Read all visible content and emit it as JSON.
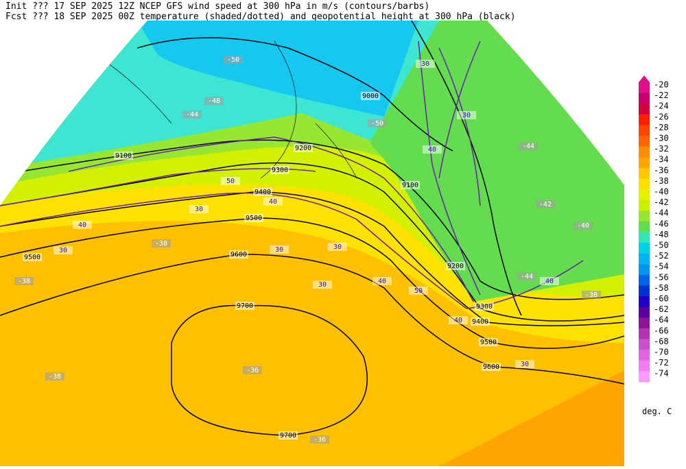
{
  "header": {
    "line1": "Init  ??? 17 SEP 2025 12Z  NCEP GFS wind speed at 300 hPa in m/s (contours/barbs)",
    "line2": "Fcst ??? 18 SEP 2025 00Z  temperature (shaded/dotted) and geopotential height at 300 hPa (black)"
  },
  "colorbar": {
    "values": [
      -20,
      -22,
      -24,
      -26,
      -28,
      -30,
      -32,
      -34,
      -36,
      -38,
      -40,
      -42,
      -44,
      -46,
      -48,
      -50,
      -52,
      -54,
      -56,
      -58,
      -60,
      -62,
      -64,
      -66,
      -68,
      -70,
      -72,
      -74
    ],
    "colors": [
      "#e0108c",
      "#c8006e",
      "#d2003c",
      "#ff1e00",
      "#ff4600",
      "#ff6400",
      "#ff8c00",
      "#ffa500",
      "#ffc800",
      "#ffe100",
      "#e6f000",
      "#c8f000",
      "#96e632",
      "#64dc50",
      "#32e6b4",
      "#00d2e6",
      "#00b4f0",
      "#0096f0",
      "#0064e6",
      "#0032d2",
      "#1e00c8",
      "#5a00a0",
      "#8c1496",
      "#b432b4",
      "#c850c8",
      "#e164e1",
      "#f07df0",
      "#ff9bff"
    ],
    "unit": "deg. C"
  },
  "map_labels": {
    "heights": [
      9000,
      9100,
      9100,
      9200,
      9200,
      9300,
      9300,
      9400,
      9400,
      9500,
      9500,
      9500,
      9600,
      9600,
      9700,
      9700
    ],
    "temps": [
      -50,
      -48,
      -44,
      -50,
      -44,
      -42,
      -40,
      -44,
      -38,
      -38,
      -38,
      -36,
      -38,
      -36
    ],
    "winds": [
      30,
      30,
      40,
      50,
      40,
      30,
      40,
      30,
      30,
      30,
      30,
      40,
      50,
      40,
      30,
      40
    ]
  }
}
